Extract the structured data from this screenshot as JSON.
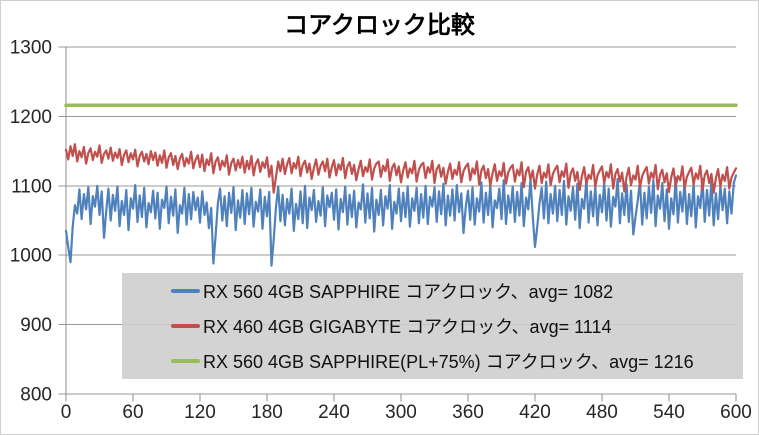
{
  "title": "コアクロック比較",
  "chart_data": {
    "type": "line",
    "title": "コアクロック比較",
    "xlabel": "",
    "ylabel": "",
    "xlim": [
      0,
      600
    ],
    "ylim": [
      800,
      1300
    ],
    "x_ticks": [
      0,
      60,
      120,
      180,
      240,
      300,
      360,
      420,
      480,
      540,
      600
    ],
    "y_ticks": [
      800,
      900,
      1000,
      1100,
      1200,
      1300
    ],
    "grid": "horizontal",
    "grid_color": "#9a9a9a",
    "axis_color": "#8c8c8c",
    "tick_label_color": "#262626",
    "legend_position": "bottom-center",
    "legend_background": "#cdcdcd",
    "series": [
      {
        "name": "RX 560 4GB SAPPHIRE コアクロック",
        "label": "RX 560 4GB SAPPHIRE コアクロック、avg= 1082",
        "avg": 1082,
        "color": "#4F81BD",
        "stroke_width": 2.2,
        "x_start": 0,
        "x_step": 2,
        "values": [
          1035,
          1012,
          990,
          1041,
          1072,
          1060,
          1095,
          1052,
          1088,
          1066,
          1098,
          1045,
          1085,
          1070,
          1100,
          1058,
          1092,
          1025,
          1063,
          1096,
          1050,
          1087,
          1064,
          1099,
          1042,
          1078,
          1058,
          1094,
          1036,
          1082,
          1067,
          1101,
          1048,
          1086,
          1055,
          1097,
          1040,
          1075,
          1062,
          1093,
          1053,
          1090,
          1038,
          1080,
          1068,
          1099,
          1046,
          1084,
          1057,
          1095,
          1032,
          1072,
          1060,
          1097,
          1044,
          1088,
          1052,
          1091,
          1065,
          1083,
          1047,
          1092,
          1058,
          1076,
          1039,
          1068,
          988,
          1028,
          1075,
          1096,
          1050,
          1085,
          1042,
          1090,
          1061,
          1098,
          1036,
          1079,
          1054,
          1094,
          1045,
          1089,
          1059,
          1097,
          1041,
          1077,
          1063,
          1095,
          1038,
          1084,
          1056,
          1091,
          985,
          1022,
          1068,
          1099,
          1049,
          1087,
          1043,
          1081,
          1060,
          1096,
          1035,
          1074,
          1052,
          1092,
          1046,
          1100,
          1039,
          1083,
          1065,
          1094,
          1048,
          1078,
          1057,
          1098,
          1042,
          1086,
          1069,
          1090,
          1051,
          1095,
          1037,
          1081,
          1062,
          1099,
          1044,
          1087,
          1055,
          1093,
          1040,
          1076,
          1066,
          1102,
          1047,
          1089,
          1053,
          1097,
          1034,
          1080,
          1058,
          1094,
          1043,
          1085,
          1067,
          1101,
          1038,
          1077,
          1060,
          1096,
          1049,
          1090,
          1055,
          1099,
          1041,
          1082,
          1064,
          1097,
          1046,
          1088,
          1054,
          1100,
          1045,
          1084,
          1070,
          1098,
          1048,
          1092,
          1059,
          1103,
          1043,
          1086,
          1057,
          1095,
          1050,
          1101,
          1062,
          1089,
          1032,
          1070,
          1093,
          1051,
          1098,
          1044,
          1082,
          1063,
          1105,
          1047,
          1090,
          1058,
          1102,
          1040,
          1079,
          1068,
          1096,
          1052,
          1108,
          1045,
          1086,
          1061,
          1099,
          1048,
          1091,
          1057,
          1104,
          1042,
          1083,
          1066,
          1110,
          1055,
          1012,
          1040,
          1075,
          1097,
          1053,
          1106,
          1046,
          1088,
          1060,
          1100,
          1049,
          1094,
          1058,
          1107,
          1044,
          1085,
          1064,
          1098,
          1051,
          1103,
          1039,
          1081,
          1067,
          1109,
          1047,
          1092,
          1056,
          1100,
          1043,
          1087,
          1062,
          1105,
          1050,
          1096,
          1041,
          1084,
          1070,
          1110,
          1046,
          1089,
          1058,
          1102,
          1048,
          1093,
          1030,
          1055,
          1078,
          1107,
          1044,
          1090,
          1053,
          1099,
          1061,
          1108,
          1042,
          1086,
          1067,
          1104,
          1049,
          1095,
          1038,
          1082,
          1059,
          1112,
          1047,
          1091,
          1063,
          1106,
          1045,
          1088,
          1056,
          1103,
          1040,
          1085,
          1068,
          1110,
          1048,
          1094,
          1057,
          1107,
          1043,
          1089,
          1052,
          1100,
          1065,
          1096,
          1046,
          1092,
          1060,
          1104,
          1115
        ]
      },
      {
        "name": "RX 460 4GB GIGABYTE コアクロック",
        "label": "RX 460 4GB GIGABYTE コアクロック、avg= 1114",
        "avg": 1114,
        "color": "#C0504D",
        "stroke_width": 2.2,
        "x_start": 0,
        "x_step": 2,
        "values": [
          1152,
          1138,
          1157,
          1143,
          1160,
          1135,
          1150,
          1141,
          1156,
          1132,
          1147,
          1154,
          1137,
          1149,
          1142,
          1158,
          1133,
          1146,
          1151,
          1139,
          1155,
          1136,
          1148,
          1140,
          1153,
          1130,
          1145,
          1151,
          1134,
          1147,
          1138,
          1152,
          1128,
          1143,
          1149,
          1135,
          1146,
          1131,
          1150,
          1137,
          1148,
          1129,
          1144,
          1133,
          1151,
          1126,
          1141,
          1147,
          1130,
          1143,
          1124,
          1139,
          1146,
          1128,
          1140,
          1132,
          1149,
          1125,
          1137,
          1144,
          1127,
          1145,
          1121,
          1138,
          1130,
          1147,
          1118,
          1135,
          1141,
          1123,
          1136,
          1128,
          1144,
          1116,
          1133,
          1139,
          1122,
          1137,
          1126,
          1142,
          1119,
          1136,
          1124,
          1143,
          1115,
          1132,
          1138,
          1120,
          1134,
          1126,
          1141,
          1113,
          1129,
          1090,
          1112,
          1135,
          1121,
          1139,
          1117,
          1131,
          1140,
          1118,
          1133,
          1125,
          1142,
          1114,
          1130,
          1136,
          1119,
          1132,
          1110,
          1126,
          1138,
          1116,
          1129,
          1135,
          1121,
          1139,
          1112,
          1127,
          1137,
          1115,
          1131,
          1123,
          1140,
          1111,
          1128,
          1134,
          1117,
          1130,
          1108,
          1124,
          1136,
          1114,
          1127,
          1120,
          1138,
          1109,
          1125,
          1132,
          1135,
          1113,
          1129,
          1121,
          1138,
          1107,
          1126,
          1132,
          1115,
          1128,
          1105,
          1122,
          1134,
          1112,
          1125,
          1118,
          1136,
          1106,
          1123,
          1130,
          1133,
          1111,
          1127,
          1119,
          1136,
          1104,
          1124,
          1130,
          1113,
          1126,
          1103,
          1120,
          1132,
          1110,
          1123,
          1116,
          1134,
          1105,
          1121,
          1128,
          1132,
          1108,
          1125,
          1117,
          1135,
          1102,
          1122,
          1129,
          1111,
          1124,
          1100,
          1118,
          1131,
          1107,
          1121,
          1114,
          1133,
          1103,
          1119,
          1126,
          1130,
          1106,
          1123,
          1115,
          1134,
          1098,
          1120,
          1127,
          1109,
          1122,
          1096,
          1116,
          1129,
          1104,
          1119,
          1112,
          1131,
          1101,
          1117,
          1124,
          1129,
          1105,
          1121,
          1113,
          1132,
          1097,
          1118,
          1125,
          1107,
          1120,
          1094,
          1114,
          1127,
          1102,
          1116,
          1110,
          1130,
          1099,
          1115,
          1122,
          1128,
          1104,
          1120,
          1112,
          1131,
          1096,
          1117,
          1124,
          1106,
          1119,
          1092,
          1113,
          1126,
          1101,
          1115,
          1109,
          1129,
          1098,
          1114,
          1121,
          1127,
          1103,
          1119,
          1111,
          1130,
          1095,
          1116,
          1123,
          1105,
          1118,
          1091,
          1112,
          1125,
          1100,
          1114,
          1108,
          1128,
          1097,
          1113,
          1120,
          1126,
          1102,
          1118,
          1110,
          1129,
          1094,
          1115,
          1122,
          1104,
          1117,
          1090,
          1111,
          1124,
          1099,
          1116,
          1107,
          1127,
          1096,
          1112,
          1119,
          1125
        ]
      },
      {
        "name": "RX 560 4GB SAPPHIRE(PL+75%) コアクロック",
        "label": "RX 560 4GB SAPPHIRE(PL+75%) コアクロック、avg= 1216",
        "avg": 1216,
        "color": "#9BBB59",
        "stroke_width": 3.5,
        "x_start": 0,
        "x_step": 600,
        "values": [
          1216,
          1216
        ]
      }
    ]
  }
}
